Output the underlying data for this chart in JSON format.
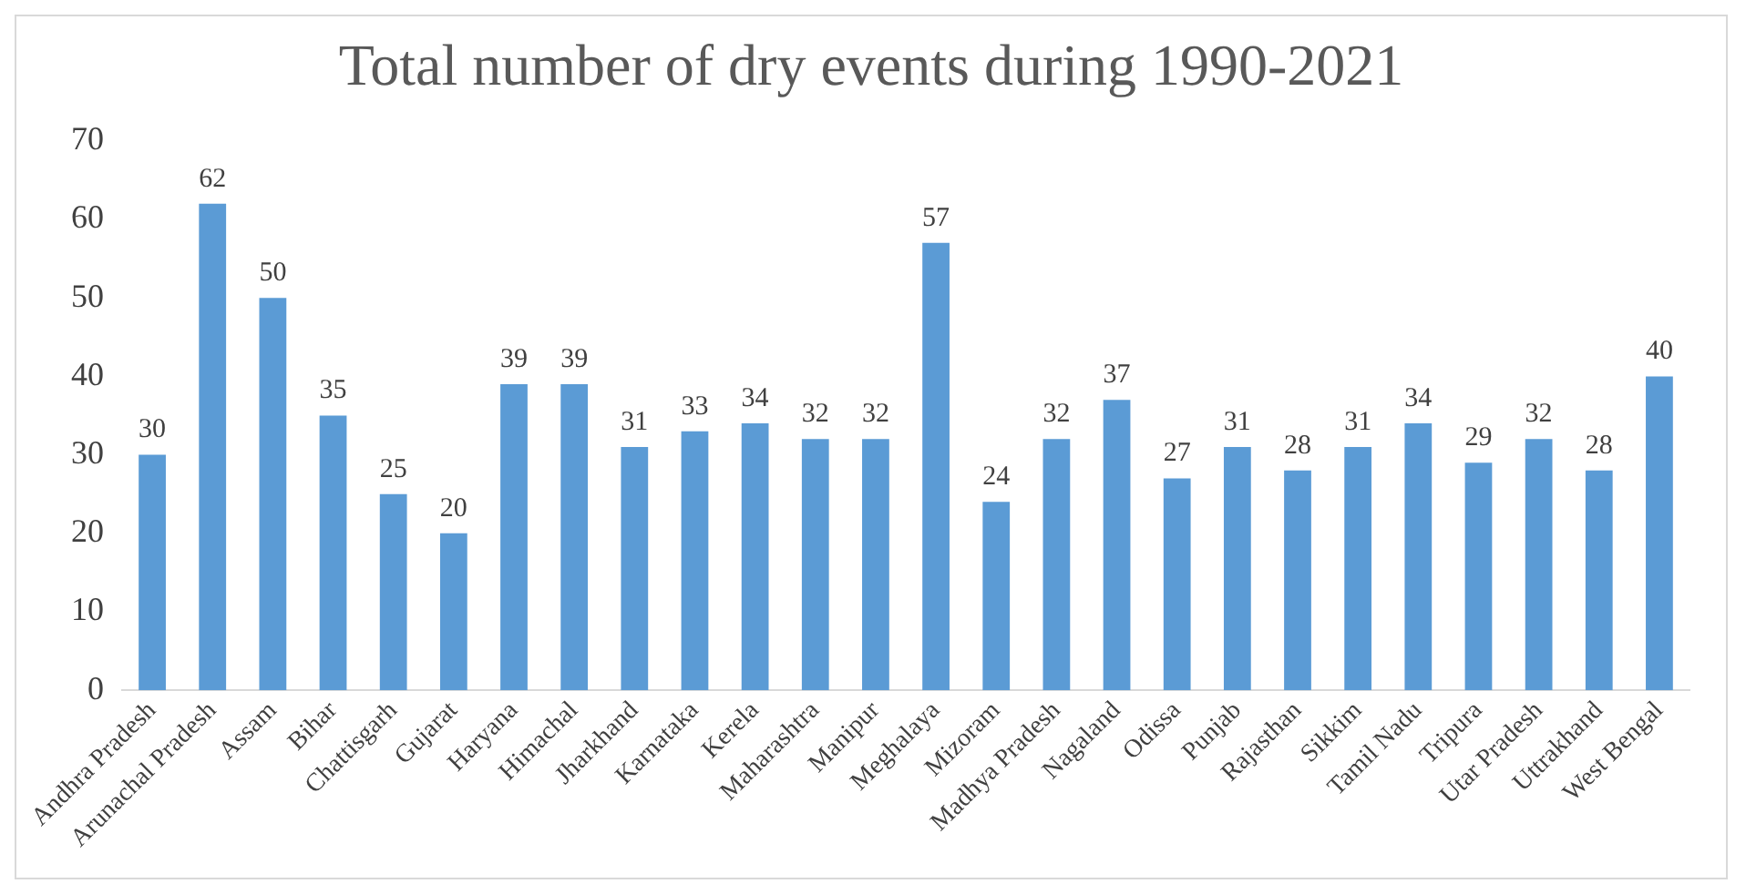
{
  "chart_data": {
    "type": "bar",
    "title": "Total number of dry events during 1990-2021",
    "categories": [
      "Andhra Pradesh",
      "Arunachal Pradesh",
      "Assam",
      "Bihar",
      "Chattisgarh",
      "Gujarat",
      "Haryana",
      "Himachal",
      "Jharkhand",
      "Karnataka",
      "Kerela",
      "Maharashtra",
      "Manipur",
      "Meghalaya",
      "Mizoram",
      "Madhya Pradesh",
      "Nagaland",
      "Odissa",
      "Punjab",
      "Rajasthan",
      "Sikkim",
      "Tamil Nadu",
      "Tripura",
      "Utar Pradesh",
      "Uttrakhand",
      "West Bengal"
    ],
    "values": [
      30,
      62,
      50,
      35,
      25,
      20,
      39,
      39,
      31,
      33,
      34,
      32,
      32,
      57,
      24,
      32,
      37,
      27,
      31,
      28,
      31,
      34,
      29,
      32,
      28,
      40
    ],
    "color": "#5b9bd5",
    "ylim": [
      0,
      70
    ],
    "yticks": [
      0,
      10,
      20,
      30,
      40,
      50,
      60,
      70
    ],
    "grid": false,
    "data_labels": true
  }
}
